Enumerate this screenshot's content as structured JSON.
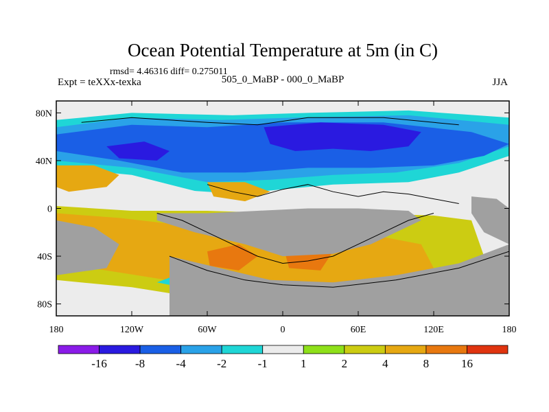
{
  "chart_data": {
    "type": "heatmap",
    "title": "Ocean Potential Temperature at 5m (in C)",
    "stats": "rmsd= 4.46316 diff= 0.275011",
    "subtitle_left": "Expt = teXXx-texka",
    "subtitle_center": "505_0_MaBP - 000_0_MaBP",
    "subtitle_right": "JJA",
    "x_ticks": [
      {
        "value": -180,
        "label": "180"
      },
      {
        "value": -120,
        "label": "120W"
      },
      {
        "value": -60,
        "label": "60W"
      },
      {
        "value": 0,
        "label": "0"
      },
      {
        "value": 60,
        "label": "60E"
      },
      {
        "value": 120,
        "label": "120E"
      },
      {
        "value": 180,
        "label": "180"
      }
    ],
    "y_ticks": [
      {
        "value": 80,
        "label": "80N"
      },
      {
        "value": 40,
        "label": "40N"
      },
      {
        "value": 0,
        "label": "0"
      },
      {
        "value": -40,
        "label": "40S"
      },
      {
        "value": -80,
        "label": "80S"
      }
    ],
    "xlim": [
      -180,
      180
    ],
    "ylim": [
      -90,
      90
    ],
    "colorbar": {
      "colors": [
        "#8a1be8",
        "#2a1ae0",
        "#1a5fe6",
        "#2aa2e8",
        "#1fd6d6",
        "#ececec",
        "#8ee01a",
        "#cccc12",
        "#e6a812",
        "#e8780f",
        "#e0340f"
      ],
      "labels": [
        {
          "boundary": 1,
          "label": "-16"
        },
        {
          "boundary": 2,
          "label": "-8"
        },
        {
          "boundary": 3,
          "label": "-4"
        },
        {
          "boundary": 4,
          "label": "-2"
        },
        {
          "boundary": 5,
          "label": "-1"
        },
        {
          "boundary": 6,
          "label": "1"
        },
        {
          "boundary": 7,
          "label": "2"
        },
        {
          "boundary": 8,
          "label": "4"
        },
        {
          "boundary": 9,
          "label": "8"
        },
        {
          "boundary": 10,
          "label": "16"
        }
      ]
    },
    "field": {
      "land_color": "#a0a0a0",
      "regions": [
        {
          "name": "background-ocean",
          "color": "#ececec",
          "polygon": [
            [
              -180,
              90
            ],
            [
              180,
              90
            ],
            [
              180,
              -90
            ],
            [
              -180,
              -90
            ]
          ]
        },
        {
          "name": "northern-light-blue",
          "color": "#1fd6d6",
          "polygon": [
            [
              -180,
              74
            ],
            [
              -120,
              80
            ],
            [
              -40,
              78
            ],
            [
              20,
              80
            ],
            [
              100,
              82
            ],
            [
              180,
              76
            ],
            [
              180,
              44
            ],
            [
              140,
              30
            ],
            [
              100,
              22
            ],
            [
              40,
              20
            ],
            [
              -20,
              14
            ],
            [
              -60,
              12
            ],
            [
              -120,
              28
            ],
            [
              -180,
              34
            ]
          ]
        },
        {
          "name": "northern-mid-blue",
          "color": "#2aa2e8",
          "polygon": [
            [
              -180,
              68
            ],
            [
              -120,
              76
            ],
            [
              -50,
              74
            ],
            [
              10,
              76
            ],
            [
              100,
              78
            ],
            [
              180,
              70
            ],
            [
              180,
              52
            ],
            [
              140,
              38
            ],
            [
              90,
              30
            ],
            [
              40,
              28
            ],
            [
              -10,
              24
            ],
            [
              -60,
              22
            ],
            [
              -120,
              34
            ],
            [
              -180,
              40
            ]
          ]
        },
        {
          "name": "northern-blue",
          "color": "#1a5fe6",
          "polygon": [
            [
              -180,
              62
            ],
            [
              -120,
              70
            ],
            [
              -60,
              68
            ],
            [
              0,
              72
            ],
            [
              80,
              72
            ],
            [
              150,
              64
            ],
            [
              180,
              54
            ],
            [
              160,
              44
            ],
            [
              120,
              36
            ],
            [
              70,
              34
            ],
            [
              20,
              34
            ],
            [
              -30,
              30
            ],
            [
              -80,
              30
            ],
            [
              -130,
              40
            ],
            [
              -180,
              48
            ]
          ]
        },
        {
          "name": "northern-deep-blue",
          "color": "#2a1ae0",
          "polygon": [
            [
              -15,
              68
            ],
            [
              30,
              72
            ],
            [
              80,
              70
            ],
            [
              110,
              64
            ],
            [
              100,
              52
            ],
            [
              70,
              48
            ],
            [
              40,
              50
            ],
            [
              10,
              48
            ],
            [
              -10,
              54
            ]
          ]
        },
        {
          "name": "pacific-deep-blue",
          "color": "#2a1ae0",
          "polygon": [
            [
              -140,
              52
            ],
            [
              -110,
              56
            ],
            [
              -90,
              48
            ],
            [
              -100,
              40
            ],
            [
              -130,
              42
            ]
          ]
        },
        {
          "name": "tropical-white-band",
          "color": "#ececec",
          "polygon": [
            [
              -180,
              22
            ],
            [
              -120,
              18
            ],
            [
              -60,
              14
            ],
            [
              0,
              10
            ],
            [
              60,
              6
            ],
            [
              120,
              4
            ],
            [
              180,
              8
            ],
            [
              180,
              -6
            ],
            [
              120,
              -4
            ],
            [
              60,
              -2
            ],
            [
              0,
              0
            ],
            [
              -60,
              4
            ],
            [
              -120,
              8
            ],
            [
              -180,
              10
            ]
          ]
        },
        {
          "name": "southern-yellow",
          "color": "#cccc12",
          "polygon": [
            [
              -180,
              2
            ],
            [
              -120,
              -2
            ],
            [
              -60,
              -2
            ],
            [
              0,
              -4
            ],
            [
              60,
              -4
            ],
            [
              120,
              -6
            ],
            [
              150,
              -10
            ],
            [
              160,
              -40
            ],
            [
              120,
              -70
            ],
            [
              60,
              -78
            ],
            [
              0,
              -78
            ],
            [
              -60,
              -76
            ],
            [
              -120,
              -66
            ],
            [
              -180,
              -60
            ]
          ]
        },
        {
          "name": "southern-orange",
          "color": "#e6a812",
          "polygon": [
            [
              -180,
              -4
            ],
            [
              -130,
              -8
            ],
            [
              -80,
              -14
            ],
            [
              -40,
              -16
            ],
            [
              0,
              -20
            ],
            [
              40,
              -22
            ],
            [
              80,
              -24
            ],
            [
              110,
              -30
            ],
            [
              120,
              -50
            ],
            [
              100,
              -66
            ],
            [
              40,
              -74
            ],
            [
              -20,
              -72
            ],
            [
              -80,
              -62
            ],
            [
              -140,
              -52
            ],
            [
              -180,
              -46
            ]
          ]
        },
        {
          "name": "north-pacific-orange",
          "color": "#e6a812",
          "polygon": [
            [
              -180,
              36
            ],
            [
              -150,
              36
            ],
            [
              -130,
              28
            ],
            [
              -140,
              18
            ],
            [
              -170,
              14
            ],
            [
              -180,
              18
            ]
          ]
        },
        {
          "name": "atlantic-orange",
          "color": "#e6a812",
          "polygon": [
            [
              -60,
              22
            ],
            [
              -30,
              22
            ],
            [
              -10,
              14
            ],
            [
              -30,
              6
            ],
            [
              -55,
              10
            ]
          ]
        },
        {
          "name": "south-atlantic-hot",
          "color": "#e8780f",
          "polygon": [
            [
              -60,
              -36
            ],
            [
              -35,
              -30
            ],
            [
              -20,
              -40
            ],
            [
              -35,
              -52
            ],
            [
              -58,
              -48
            ]
          ]
        },
        {
          "name": "indian-hot",
          "color": "#e8780f",
          "polygon": [
            [
              0,
              -30
            ],
            [
              25,
              -26
            ],
            [
              40,
              -36
            ],
            [
              30,
              -52
            ],
            [
              5,
              -50
            ]
          ]
        },
        {
          "name": "southern-cold-edge",
          "color": "#1fd6d6",
          "polygon": [
            [
              -90,
              -58
            ],
            [
              -60,
              -56
            ],
            [
              -50,
              -62
            ],
            [
              -80,
              -66
            ],
            [
              -100,
              -62
            ]
          ]
        },
        {
          "name": "antarctic-white",
          "color": "#ececec",
          "polygon": [
            [
              -60,
              -80
            ],
            [
              0,
              -82
            ],
            [
              80,
              -80
            ],
            [
              120,
              -76
            ],
            [
              120,
              -84
            ],
            [
              0,
              -86
            ],
            [
              -60,
              -84
            ]
          ]
        }
      ],
      "land": [
        {
          "name": "laurasia-block",
          "polygon": [
            [
              -100,
              -10
            ],
            [
              -70,
              -20
            ],
            [
              -30,
              -30
            ],
            [
              0,
              -40
            ],
            [
              40,
              -38
            ],
            [
              70,
              -30
            ],
            [
              90,
              -20
            ],
            [
              110,
              -10
            ],
            [
              100,
              -2
            ],
            [
              60,
              0
            ],
            [
              20,
              0
            ],
            [
              -20,
              -2
            ],
            [
              -60,
              -4
            ],
            [
              -100,
              -4
            ]
          ]
        },
        {
          "name": "gondwana-block",
          "polygon": [
            [
              -90,
              -40
            ],
            [
              -50,
              -50
            ],
            [
              -10,
              -60
            ],
            [
              40,
              -62
            ],
            [
              90,
              -56
            ],
            [
              140,
              -46
            ],
            [
              180,
              -30
            ],
            [
              180,
              -90
            ],
            [
              -90,
              -90
            ]
          ]
        },
        {
          "name": "western-land",
          "polygon": [
            [
              -180,
              -10
            ],
            [
              -150,
              -16
            ],
            [
              -130,
              -30
            ],
            [
              -140,
              -50
            ],
            [
              -180,
              -56
            ]
          ]
        },
        {
          "name": "eastern-land",
          "polygon": [
            [
              150,
              10
            ],
            [
              170,
              8
            ],
            [
              180,
              0
            ],
            [
              180,
              -30
            ],
            [
              160,
              -20
            ],
            [
              150,
              -4
            ]
          ]
        }
      ],
      "coastlines": [
        [
          [
            -160,
            72
          ],
          [
            -120,
            76
          ],
          [
            -60,
            72
          ],
          [
            -20,
            70
          ],
          [
            20,
            76
          ],
          [
            80,
            76
          ],
          [
            140,
            70
          ]
        ],
        [
          [
            -60,
            20
          ],
          [
            -40,
            14
          ],
          [
            -20,
            10
          ],
          [
            0,
            16
          ],
          [
            20,
            20
          ],
          [
            40,
            14
          ],
          [
            60,
            10
          ],
          [
            80,
            14
          ],
          [
            100,
            12
          ],
          [
            120,
            8
          ],
          [
            140,
            4
          ]
        ],
        [
          [
            -100,
            -4
          ],
          [
            -80,
            -10
          ],
          [
            -60,
            -20
          ],
          [
            -40,
            -30
          ],
          [
            -20,
            -40
          ],
          [
            0,
            -46
          ],
          [
            20,
            -44
          ],
          [
            40,
            -40
          ],
          [
            60,
            -30
          ],
          [
            80,
            -20
          ],
          [
            100,
            -10
          ],
          [
            120,
            -4
          ]
        ],
        [
          [
            -90,
            -40
          ],
          [
            -60,
            -52
          ],
          [
            -30,
            -60
          ],
          [
            0,
            -64
          ],
          [
            40,
            -66
          ],
          [
            90,
            -60
          ],
          [
            140,
            -50
          ],
          [
            180,
            -36
          ]
        ]
      ]
    }
  }
}
